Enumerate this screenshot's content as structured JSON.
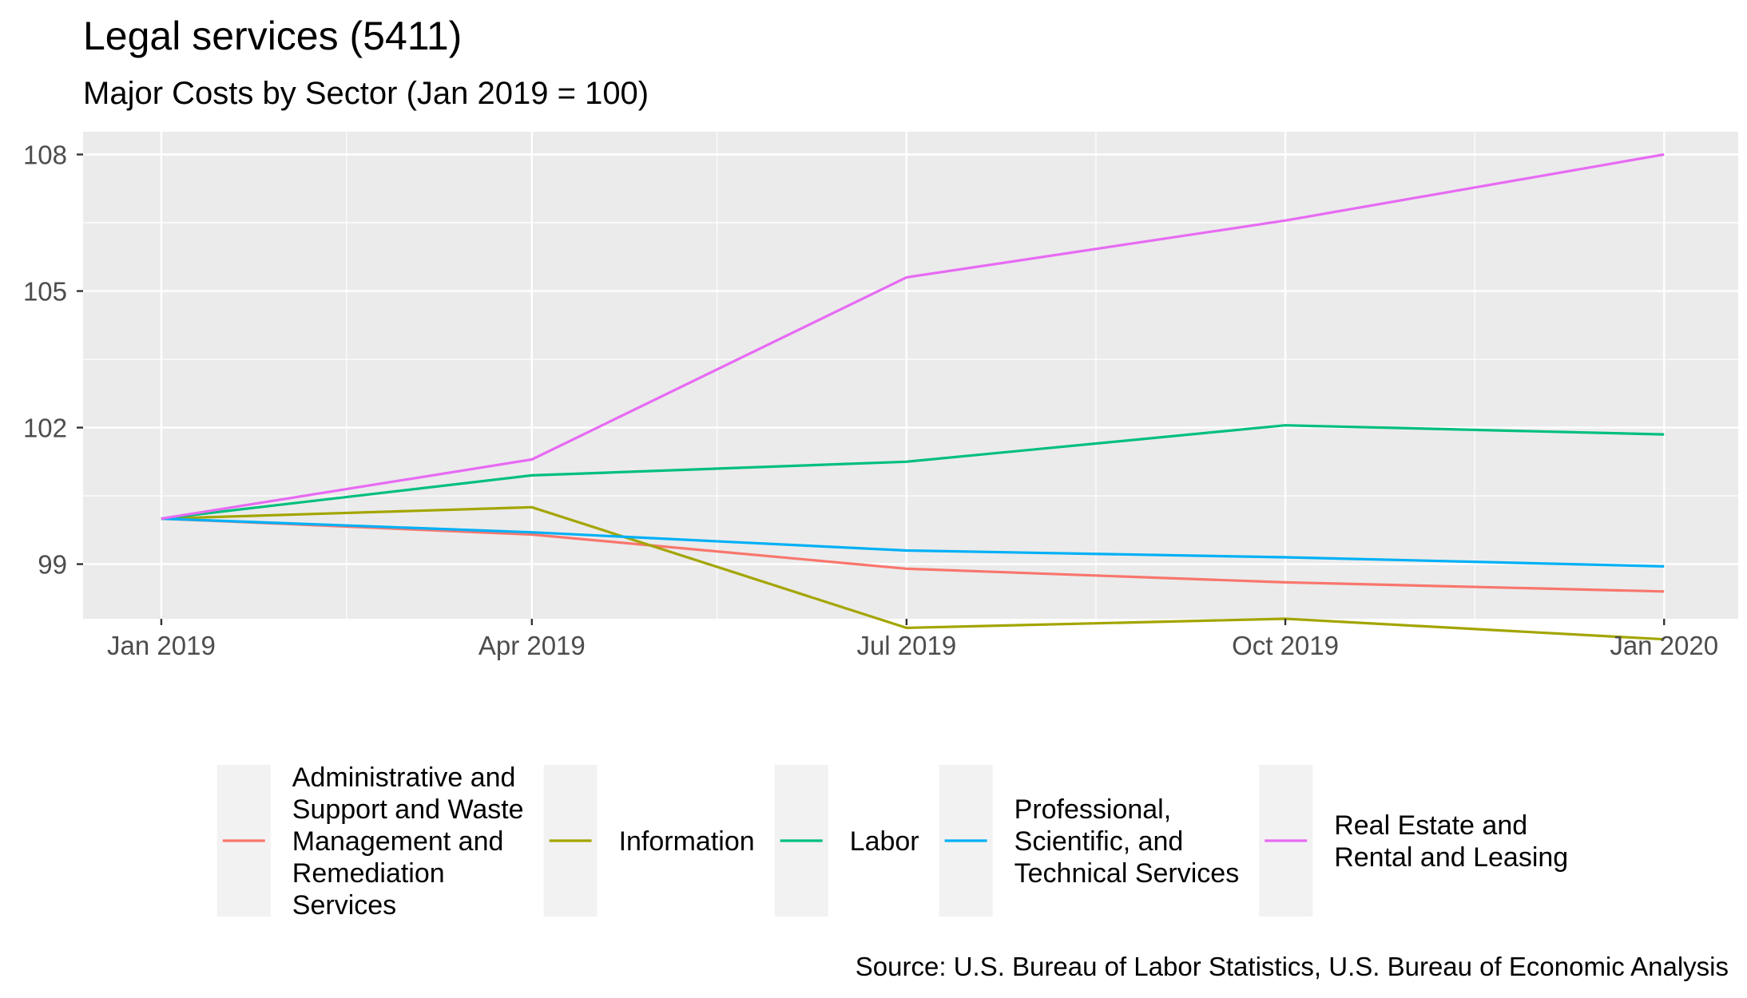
{
  "chart_data": {
    "type": "line",
    "title": "Legal services (5411)",
    "subtitle": "Major Costs by Sector (Jan 2019 = 100)",
    "caption": "Source: U.S. Bureau of Labor Statistics, U.S. Bureau of Economic Analysis",
    "xlabel": "",
    "ylabel": "",
    "x": [
      "2019-01-01",
      "2019-04-01",
      "2019-07-01",
      "2019-10-01",
      "2020-01-01"
    ],
    "x_ticks": [
      {
        "date": "2019-01-01",
        "label": "Jan 2019"
      },
      {
        "date": "2019-04-01",
        "label": "Apr 2019"
      },
      {
        "date": "2019-07-01",
        "label": "Jul 2019"
      },
      {
        "date": "2019-10-01",
        "label": "Oct 2019"
      },
      {
        "date": "2020-01-01",
        "label": "Jan 2020"
      }
    ],
    "x_minor_breaks": [
      "2019-02-15",
      "2019-05-16",
      "2019-08-16",
      "2019-11-16"
    ],
    "xlim": [
      "2018-12-13",
      "2020-01-19"
    ],
    "y_ticks": [
      99,
      102,
      105,
      108
    ],
    "y_minor_breaks": [
      97.5,
      100.5,
      103.5,
      106.5
    ],
    "ylim": [
      97.8,
      108.5
    ],
    "grid": true,
    "legend_position": "bottom",
    "series": [
      {
        "name": "Administrative and Support and Waste Management and Remediation Services",
        "label_lines": [
          "Administrative and",
          "Support and Waste",
          "Management and",
          "Remediation",
          "Services"
        ],
        "color": "#F8766D",
        "values": [
          100,
          99.65,
          98.9,
          98.6,
          98.4
        ]
      },
      {
        "name": "Information",
        "label_lines": [
          "Information"
        ],
        "color": "#A3A500",
        "values": [
          100,
          100.25,
          97.6,
          97.8,
          97.35
        ]
      },
      {
        "name": "Labor",
        "label_lines": [
          "Labor"
        ],
        "color": "#00BF7D",
        "values": [
          100,
          100.95,
          101.25,
          102.05,
          101.85
        ]
      },
      {
        "name": "Professional, Scientific, and Technical Services",
        "label_lines": [
          "Professional,",
          "Scientific, and",
          "Technical Services"
        ],
        "color": "#00B0F6",
        "values": [
          100,
          99.7,
          99.3,
          99.15,
          98.95
        ]
      },
      {
        "name": "Real Estate and Rental and Leasing",
        "label_lines": [
          "Real Estate and",
          "Rental and Leasing"
        ],
        "color": "#E76BF3",
        "values": [
          100,
          101.3,
          105.3,
          106.55,
          108.0
        ]
      }
    ]
  }
}
